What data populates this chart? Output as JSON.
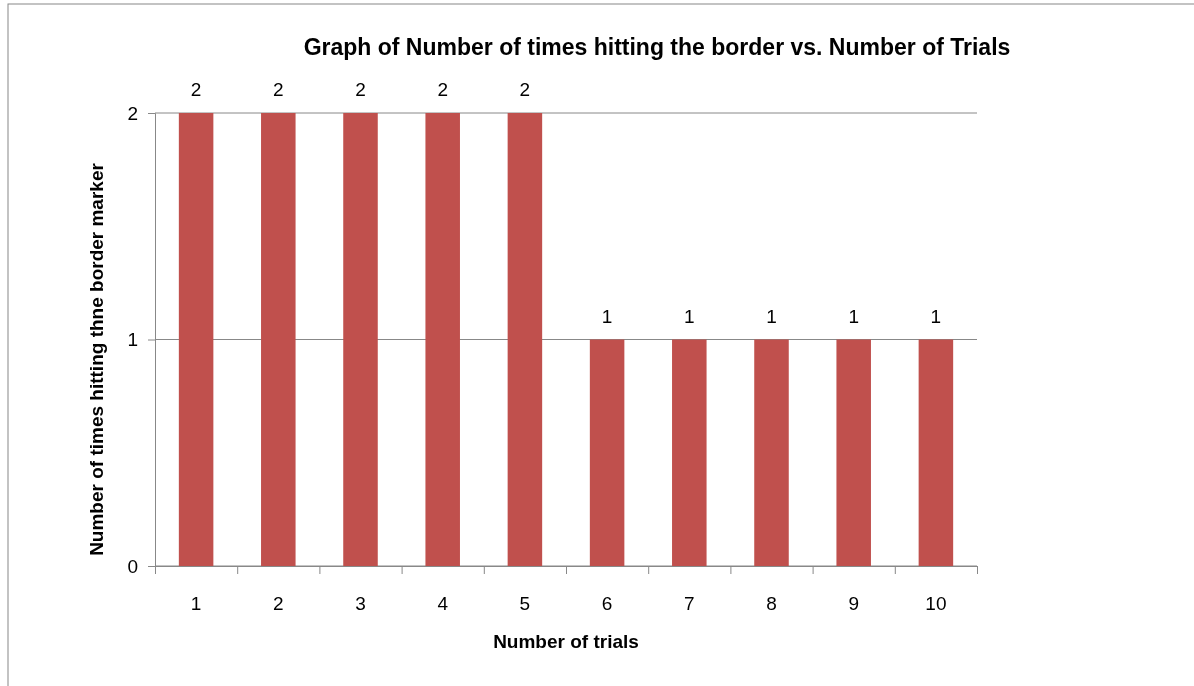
{
  "chart_data": {
    "type": "bar",
    "title": "Graph of Number of times hitting the border vs. Number of Trials",
    "xlabel": "Number of trials",
    "ylabel": "Number of times hitting thne border marker",
    "categories": [
      "1",
      "2",
      "3",
      "4",
      "5",
      "6",
      "7",
      "8",
      "9",
      "10"
    ],
    "values": [
      2,
      2,
      2,
      2,
      2,
      1,
      1,
      1,
      1,
      1
    ],
    "color": "#c0504d",
    "ylim": [
      0,
      2
    ],
    "yticks": [
      0,
      1,
      2
    ],
    "grid": "y",
    "data_labels": true
  }
}
